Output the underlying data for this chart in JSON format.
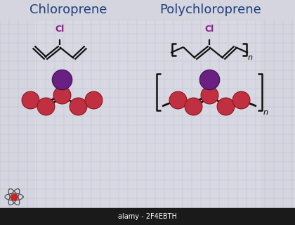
{
  "title_left": "Chloroprene",
  "title_right": "Polychloroprene",
  "title_color": "#1e3f7a",
  "cl_color": "#8b1a8b",
  "background_top": "#c8c8d4",
  "background_bottom": "#e0e0e8",
  "grid_color": "#b0b0c4",
  "atom_red": "#c03040",
  "atom_purple": "#6a2080",
  "bond_color": "#111111",
  "bar_color": "#1a1a1a",
  "watermark": "alamy - 2F4EBTH",
  "bar_text_color": "#ffffff"
}
